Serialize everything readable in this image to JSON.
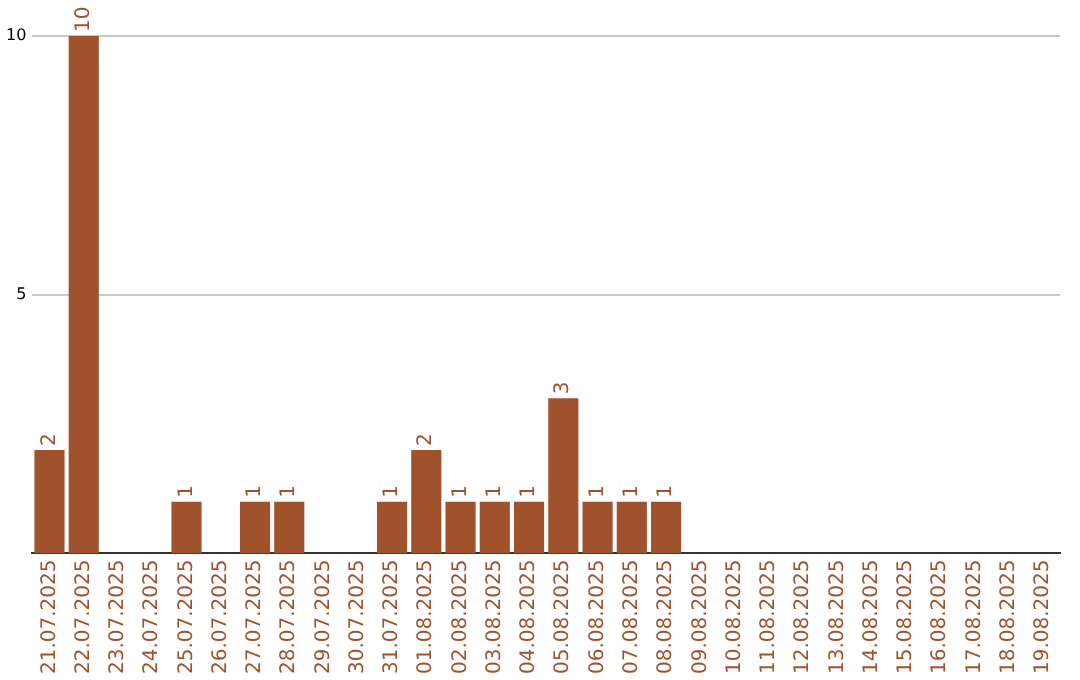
{
  "chart_data": {
    "type": "bar",
    "categories": [
      "21.07.2025",
      "22.07.2025",
      "23.07.2025",
      "24.07.2025",
      "25.07.2025",
      "26.07.2025",
      "27.07.2025",
      "28.07.2025",
      "29.07.2025",
      "30.07.2025",
      "31.07.2025",
      "01.08.2025",
      "02.08.2025",
      "03.08.2025",
      "04.08.2025",
      "05.08.2025",
      "06.08.2025",
      "07.08.2025",
      "08.08.2025",
      "09.08.2025",
      "10.08.2025",
      "11.08.2025",
      "12.08.2025",
      "13.08.2025",
      "14.08.2025",
      "15.08.2025",
      "16.08.2025",
      "17.08.2025",
      "18.08.2025",
      "19.08.2025"
    ],
    "values": [
      2,
      10,
      0,
      0,
      1,
      0,
      1,
      1,
      0,
      0,
      1,
      2,
      1,
      1,
      1,
      3,
      1,
      1,
      1,
      0,
      0,
      0,
      0,
      0,
      0,
      0,
      0,
      0,
      0,
      0
    ],
    "value_labels": [
      "2",
      "10",
      null,
      null,
      "1",
      null,
      "1",
      "1",
      null,
      null,
      "1",
      "2",
      "1",
      "1",
      "1",
      "3",
      "1",
      "1",
      "1",
      null,
      null,
      null,
      null,
      null,
      null,
      null,
      null,
      null,
      null,
      null
    ],
    "color": "#a0522d",
    "ylim": [
      0,
      10
    ],
    "yticks": [
      5,
      10
    ],
    "grid": "y",
    "legend": false
  }
}
